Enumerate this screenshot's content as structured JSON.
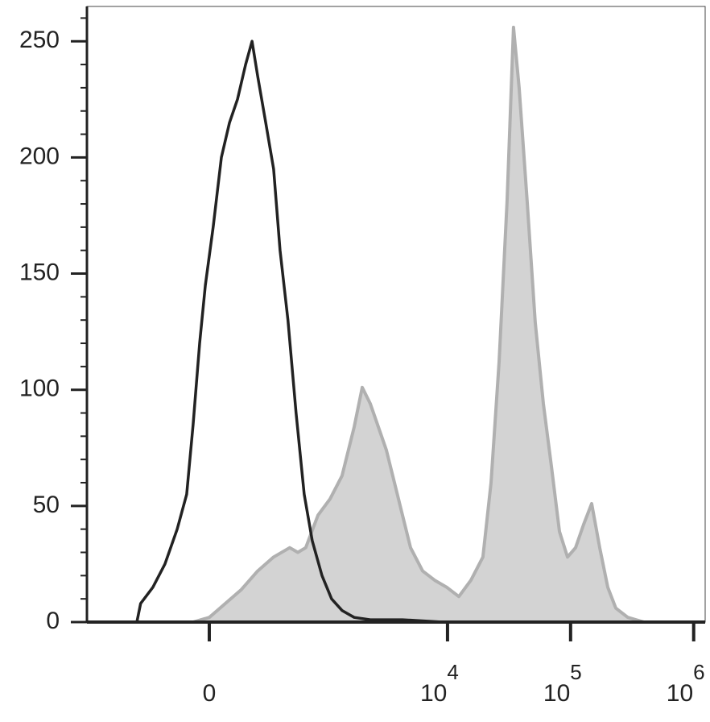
{
  "chart_data": {
    "type": "histogram-overlay",
    "xscale": "arcsinh",
    "xscale_cofactor": 232,
    "xlim": [
      -1132,
      1240000
    ],
    "ylim": [
      0,
      265
    ],
    "xticks": [
      0,
      {
        "value": 10000,
        "label": "10",
        "exponent": "4"
      },
      {
        "value": 100000,
        "label": "10",
        "exponent": "5"
      },
      {
        "value": 1000000,
        "label": "10",
        "exponent": "6"
      }
    ],
    "yticks": [
      0,
      50,
      100,
      150,
      200,
      250
    ],
    "yminor_ticks": [
      10,
      20,
      30,
      40,
      60,
      70,
      80,
      90,
      110,
      120,
      130,
      140,
      160,
      170,
      180,
      190,
      210,
      220,
      230,
      240,
      260
    ],
    "series": [
      {
        "color": "#b0b0b0",
        "fill": "#d3d3d3",
        "filled": true,
        "x": [
          -71,
          0,
          71,
          148,
          240,
          352,
          497,
          586,
          686,
          871,
          1099,
          1381,
          1738,
          2021,
          2352,
          2737,
          3183,
          3703,
          4303,
          5004,
          6276,
          7864,
          9861,
          12366,
          15498,
          19395,
          22570,
          26240,
          30490,
          34380,
          38210,
          44430,
          51650,
          60060,
          69830,
          81180,
          94380,
          109740,
          127580,
          148300,
          172400,
          200450,
          232900,
          291900,
          394600
        ],
        "values": [
          0,
          2,
          8,
          14,
          22,
          28,
          32,
          30,
          32,
          46,
          53,
          63,
          84,
          101,
          94,
          84,
          74,
          60,
          46,
          32,
          22,
          18,
          15,
          11,
          18,
          28,
          60,
          112,
          181,
          256,
          230,
          181,
          129,
          94,
          67,
          39,
          28,
          32,
          42,
          51,
          32,
          15,
          6,
          2,
          0
        ]
      },
      {
        "color": "#222222",
        "filled": false,
        "x": [
          -420,
          -387,
          -293,
          -215,
          -148,
          -101,
          -71,
          -42,
          -17,
          17,
          53,
          90,
          128,
          170,
          206,
          240,
          293,
          352,
          405,
          479,
          566,
          666,
          780,
          941,
          1132,
          1381,
          1738,
          2352,
          4303,
          9141,
          19395
        ],
        "values": [
          0,
          8,
          15,
          25,
          40,
          55,
          85,
          120,
          145,
          170,
          200,
          215,
          225,
          240,
          250,
          235,
          215,
          195,
          160,
          130,
          90,
          55,
          35,
          20,
          10,
          5,
          2,
          1,
          1,
          0,
          0
        ]
      }
    ]
  }
}
